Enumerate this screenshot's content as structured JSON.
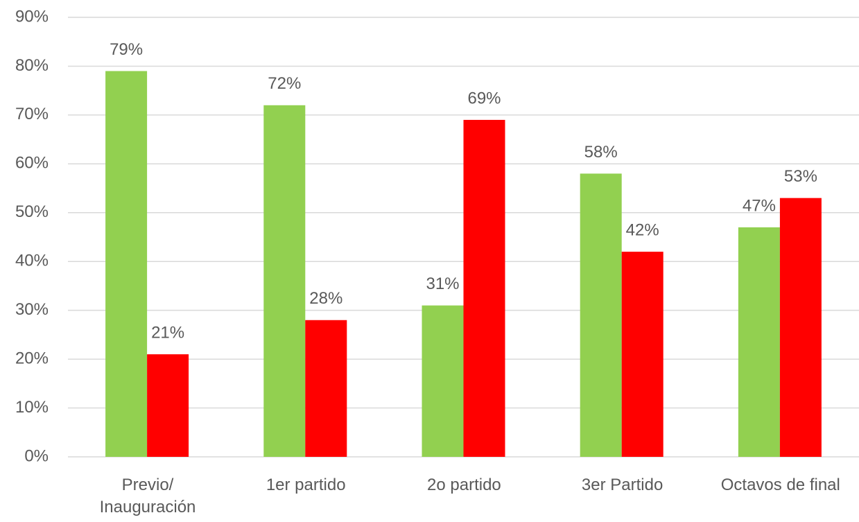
{
  "chart_data": {
    "type": "bar",
    "categories": [
      "Previo/\nInauguración",
      "1er partido",
      "2o partido",
      "3er Partido",
      "Octavos de final"
    ],
    "series": [
      {
        "color": "#92d050",
        "values": [
          79,
          72,
          31,
          58,
          47
        ],
        "value_labels": [
          "79%",
          "72%",
          "31%",
          "58%",
          "47%"
        ]
      },
      {
        "color": "#ff0000",
        "values": [
          21,
          28,
          69,
          42,
          53
        ],
        "value_labels": [
          "21%",
          "28%",
          "69%",
          "42%",
          "53%"
        ]
      }
    ],
    "ylim": [
      0,
      90
    ],
    "yticks": [
      {
        "value": 0,
        "label": "0%"
      },
      {
        "value": 10,
        "label": "10%"
      },
      {
        "value": 20,
        "label": "20%"
      },
      {
        "value": 30,
        "label": "30%"
      },
      {
        "value": 40,
        "label": "40%"
      },
      {
        "value": 50,
        "label": "50%"
      },
      {
        "value": 60,
        "label": "60%"
      },
      {
        "value": 70,
        "label": "70%"
      },
      {
        "value": 80,
        "label": "80%"
      },
      {
        "value": 90,
        "label": "90%"
      }
    ],
    "grid": true
  }
}
